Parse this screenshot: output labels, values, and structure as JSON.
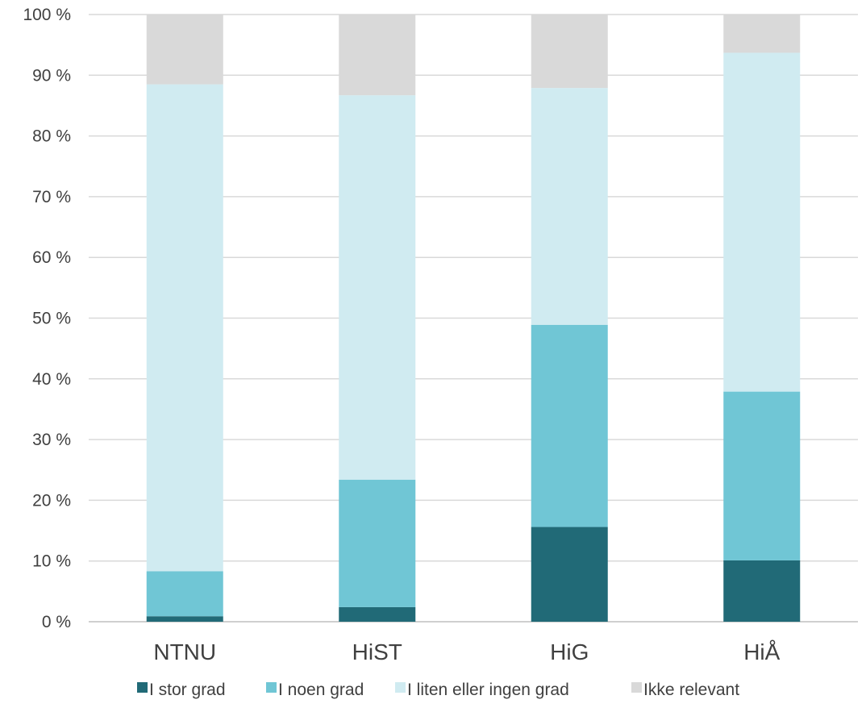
{
  "chart_data": {
    "type": "bar",
    "stacked": true,
    "categories": [
      "NTNU",
      "HiST",
      "HiG",
      "HiÅ"
    ],
    "series": [
      {
        "name": "I stor grad",
        "color": "#216a77",
        "values": [
          0.9,
          2.4,
          15.6,
          10.1
        ]
      },
      {
        "name": "I noen grad",
        "color": "#70c6d5",
        "values": [
          7.4,
          21.0,
          33.3,
          27.8
        ]
      },
      {
        "name": "I liten eller ingen grad",
        "color": "#d0ebf1",
        "values": [
          80.2,
          63.3,
          39.0,
          55.8
        ]
      },
      {
        "name": "Ikke relevant",
        "color": "#d9d9d9",
        "values": [
          11.5,
          13.3,
          12.1,
          6.3
        ]
      }
    ],
    "ylim": [
      0,
      100
    ],
    "yticks": [
      "0 %",
      "10 %",
      "20 %",
      "30 %",
      "40 %",
      "50 %",
      "60 %",
      "70 %",
      "80 %",
      "90 %",
      "100 %"
    ],
    "grid": true,
    "legend_position": "bottom",
    "title": "",
    "xlabel": "",
    "ylabel": ""
  }
}
